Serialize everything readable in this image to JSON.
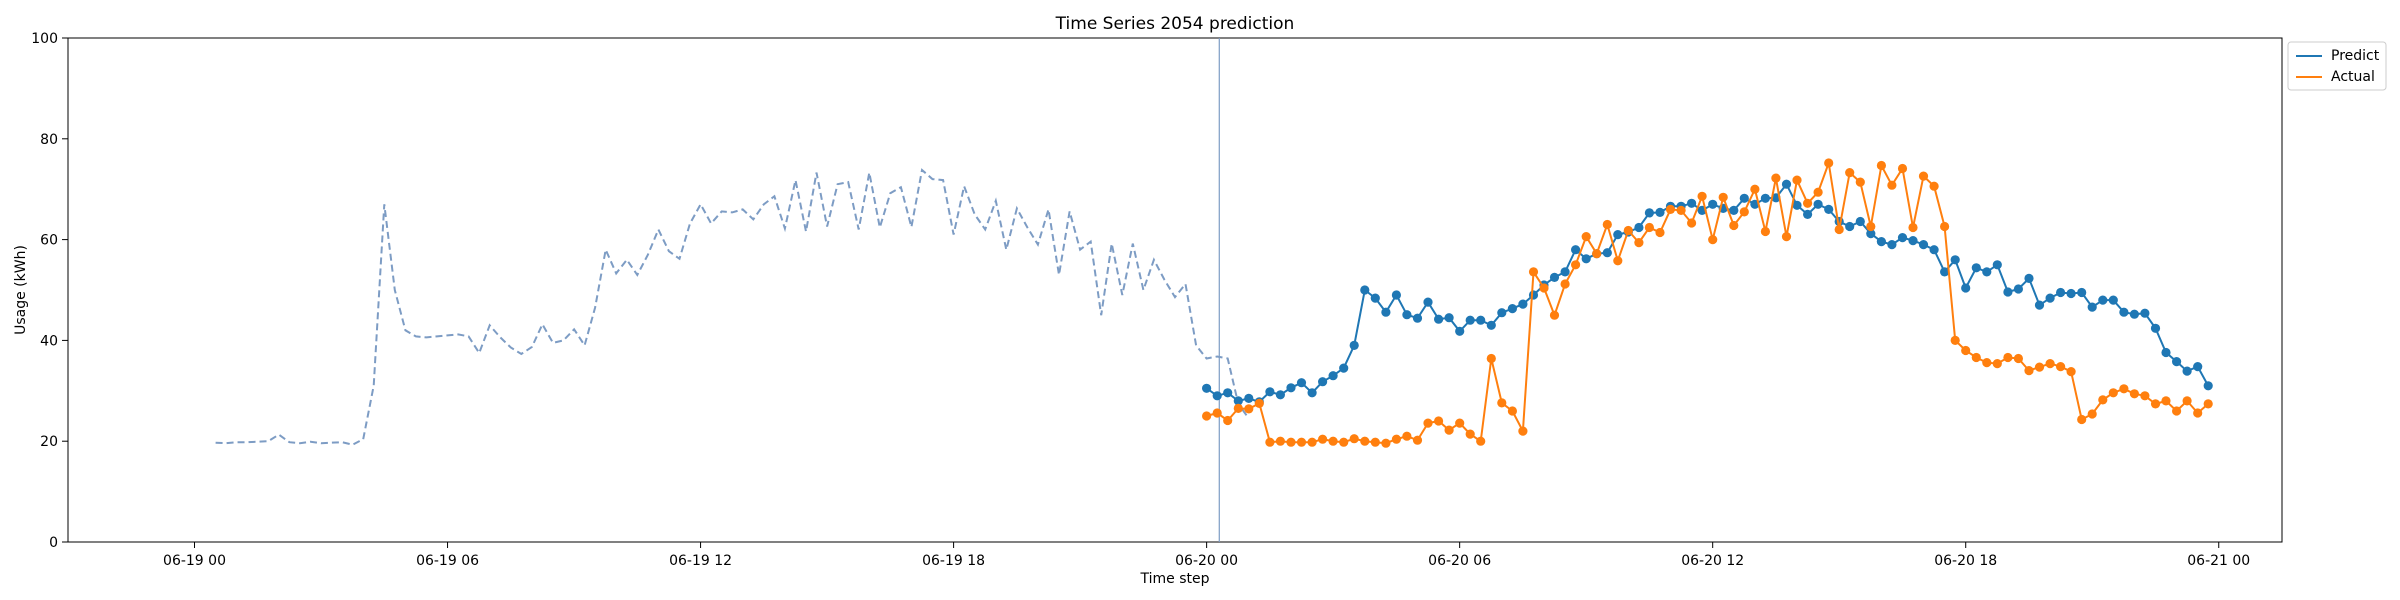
{
  "colors": {
    "history": "#7d9cc4",
    "predict": "#1f77b4",
    "actual": "#ff7f0e",
    "divider": "#7d9cc4",
    "axis": "#000000"
  },
  "chart_data": {
    "type": "line",
    "title": "Time Series 2054 prediction",
    "xlabel": "Time step",
    "ylabel": "Usage (kWh)",
    "ylim": [
      0,
      100
    ],
    "xlim_hours": [
      -3.0,
      49.5
    ],
    "x_ticks": [
      {
        "hour": 0,
        "label": "06-19 00"
      },
      {
        "hour": 6,
        "label": "06-19 06"
      },
      {
        "hour": 12,
        "label": "06-19 12"
      },
      {
        "hour": 18,
        "label": "06-19 18"
      },
      {
        "hour": 24,
        "label": "06-20 00"
      },
      {
        "hour": 30,
        "label": "06-20 06"
      },
      {
        "hour": 36,
        "label": "06-20 12"
      },
      {
        "hour": 42,
        "label": "06-20 18"
      },
      {
        "hour": 48,
        "label": "06-21 00"
      }
    ],
    "y_ticks": [
      0,
      20,
      40,
      60,
      80,
      100
    ],
    "grid": false,
    "legend_position": "upper-right-outside",
    "divider_hour": 24.3,
    "series": [
      {
        "name": "",
        "style": "dashed",
        "start_hour": 0.5,
        "step_hours": 0.25,
        "values": [
          19.7,
          19.6,
          19.8,
          19.8,
          19.9,
          20.0,
          21.3,
          19.8,
          19.6,
          19.9,
          19.6,
          19.7,
          19.8,
          19.3,
          20.4,
          31.0,
          67.0,
          50.0,
          42.0,
          40.8,
          40.6,
          40.8,
          41.0,
          41.2,
          40.8,
          37.5,
          43.0,
          40.6,
          38.6,
          37.3,
          38.7,
          43.2,
          39.5,
          40.0,
          42.2,
          39.0,
          46.5,
          58.0,
          53.3,
          56.0,
          53.0,
          57.0,
          62.0,
          57.7,
          56.2,
          63.2,
          67.0,
          63.2,
          65.6,
          65.4,
          66.0,
          64.0,
          67.0,
          68.6,
          62.2,
          71.8,
          61.6,
          73.3,
          62.6,
          71.0,
          71.4,
          62.0,
          73.3,
          62.4,
          69.2,
          70.4,
          62.5,
          73.8,
          72.0,
          71.8,
          61.0,
          70.6,
          65.0,
          62.0,
          67.7,
          58.0,
          66.2,
          62.4,
          59.0,
          66.0,
          53.0,
          65.6,
          58.0,
          59.6,
          45.0,
          59.2,
          49.0,
          59.2,
          50.0,
          56.0,
          52.0,
          48.6,
          51.2,
          39.0,
          36.4,
          36.8,
          36.4,
          27.4,
          24.5
        ]
      },
      {
        "name": "Predict",
        "style": "solid-markers",
        "start_hour": 24.0,
        "step_hours": 0.25,
        "values": [
          30.5,
          29.0,
          29.6,
          28.0,
          28.5,
          27.8,
          29.8,
          29.2,
          30.6,
          31.6,
          29.6,
          31.8,
          33.0,
          34.5,
          39.0,
          50.0,
          48.4,
          45.6,
          49.0,
          45.1,
          44.4,
          47.6,
          44.2,
          44.5,
          41.8,
          44.0,
          44.0,
          43.0,
          45.5,
          46.3,
          47.2,
          49.0,
          51.0,
          52.5,
          53.6,
          58.0,
          56.2,
          57.2,
          57.4,
          61.0,
          61.5,
          62.4,
          65.3,
          65.4,
          66.6,
          66.6,
          67.2,
          65.8,
          67.0,
          66.2,
          65.8,
          68.2,
          67.0,
          68.2,
          68.3,
          71.0,
          66.8,
          65.0,
          67.0,
          66.0,
          63.6,
          62.6,
          63.6,
          61.2,
          59.6,
          59.0,
          60.4,
          59.8,
          59.0,
          58.0,
          53.6,
          56.0,
          50.4,
          54.4,
          53.6,
          55.0,
          49.6,
          50.2,
          52.3,
          47.0,
          48.4,
          49.5,
          49.3,
          49.5,
          46.6,
          48.0,
          48.0,
          45.6,
          45.2,
          45.4,
          42.4,
          37.6,
          35.8,
          33.9,
          34.8,
          31.0
        ]
      },
      {
        "name": "Actual",
        "style": "solid-markers",
        "start_hour": 24.0,
        "step_hours": 0.25,
        "values": [
          25.0,
          25.6,
          24.1,
          26.5,
          26.4,
          27.5,
          19.8,
          20.0,
          19.8,
          19.8,
          19.8,
          20.4,
          20.0,
          19.8,
          20.5,
          20.0,
          19.8,
          19.6,
          20.4,
          21.0,
          20.2,
          23.6,
          24.0,
          22.2,
          23.6,
          21.4,
          20.0,
          36.4,
          27.6,
          26.0,
          22.0,
          53.6,
          50.4,
          45.0,
          51.2,
          55.0,
          60.6,
          57.2,
          63.0,
          55.8,
          61.8,
          59.4,
          62.4,
          61.4,
          66.0,
          65.8,
          63.3,
          68.6,
          60.0,
          68.4,
          62.8,
          65.5,
          70.0,
          61.6,
          72.2,
          60.6,
          71.8,
          67.2,
          69.4,
          75.2,
          62.0,
          73.3,
          71.4,
          62.6,
          74.7,
          70.8,
          74.1,
          62.4,
          72.6,
          70.6,
          62.6,
          40.0,
          38.0,
          36.6,
          35.6,
          35.4,
          36.6,
          36.4,
          34.0,
          34.7,
          35.4,
          34.8,
          33.8,
          24.3,
          25.4,
          28.2,
          29.6,
          30.4,
          29.4,
          29.0,
          27.4,
          28.0,
          26.0,
          28.0,
          25.6,
          27.4
        ]
      }
    ]
  }
}
